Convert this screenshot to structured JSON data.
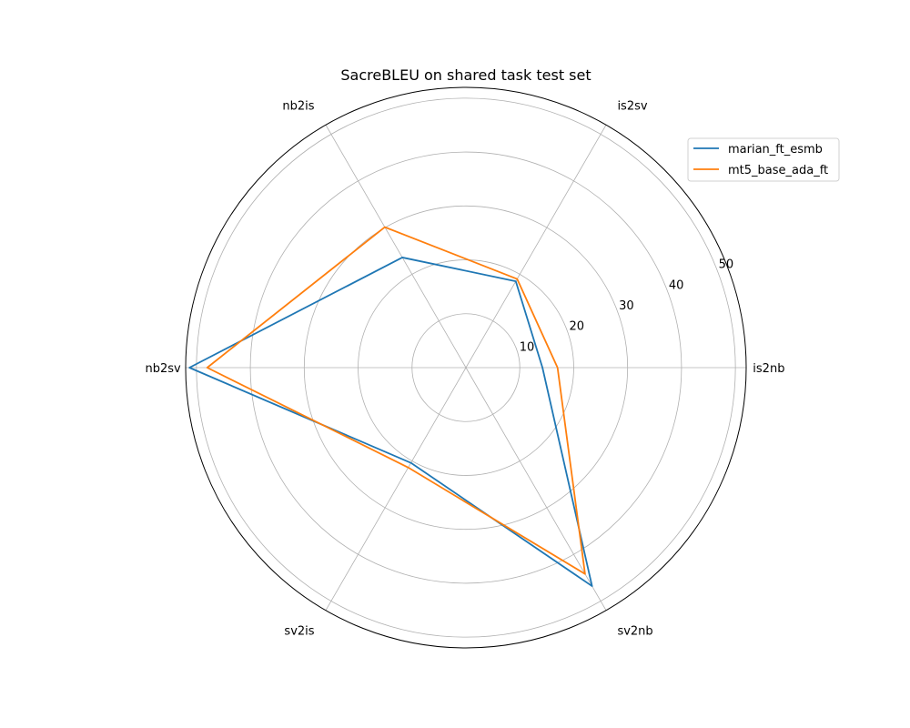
{
  "chart_data": {
    "type": "radar",
    "title": "SacreBLEU on shared task test set",
    "categories": [
      "is2nb",
      "is2sv",
      "nb2is",
      "nb2sv",
      "sv2is",
      "sv2nb"
    ],
    "r_ticks": [
      10,
      20,
      30,
      40,
      50
    ],
    "rlim": [
      0,
      52
    ],
    "grid": true,
    "legend_position": "top-right",
    "series": [
      {
        "name": "marian_ft_esmb",
        "color": "#1f77b4",
        "values": [
          14.2,
          18.5,
          23.6,
          51.3,
          20.4,
          46.8
        ]
      },
      {
        "name": "mt5_base_ada_ft",
        "color": "#ff7f0e",
        "values": [
          17.0,
          19.0,
          30.1,
          48.0,
          21.4,
          44.2
        ]
      }
    ]
  }
}
